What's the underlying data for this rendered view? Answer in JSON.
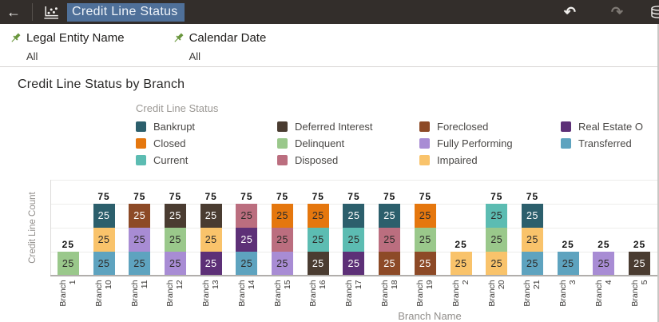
{
  "header": {
    "title": "Credit Line Status",
    "back_icon": "arrow-left",
    "undo_icon": "undo-arrow",
    "redo_icon": "redo-arrow",
    "data_icon": "database",
    "bg_color": "#332e2b",
    "selection_color": "#4f7099",
    "undo_glyph": "↶",
    "redo_glyph": "↷",
    "back_glyph": "←"
  },
  "filters": [
    {
      "label": "Legal Entity Name",
      "value": "All",
      "icon": "green-pin"
    },
    {
      "label": "Calendar Date",
      "value": "All",
      "icon": "green-pin"
    }
  ],
  "legend": {
    "title": "Credit Line Status",
    "columns": [
      [
        {
          "label": "Bankrupt",
          "color": "#2c5f6c"
        },
        {
          "label": "Closed",
          "color": "#e5770e"
        },
        {
          "label": "Current",
          "color": "#5cbcb2"
        }
      ],
      [
        {
          "label": "Deferred Interest",
          "color": "#4a3c31"
        },
        {
          "label": "Delinquent",
          "color": "#9ac88b"
        },
        {
          "label": "Disposed",
          "color": "#bb6e7f"
        }
      ],
      [
        {
          "label": "Foreclosed",
          "color": "#8d4a27"
        },
        {
          "label": "Fully Performing",
          "color": "#a88cd4"
        },
        {
          "label": "Impaired",
          "color": "#f9c36b"
        }
      ],
      [
        {
          "label": "Real Estate O",
          "color": "#5d3077"
        },
        {
          "label": "Transferred",
          "color": "#5ea3bf"
        }
      ]
    ]
  },
  "chart_data": {
    "type": "bar",
    "stacked": true,
    "title": "Credit Line Status by Branch",
    "xlabel": "Branch Name",
    "ylabel": "Credit Line Count",
    "ylim": [
      0,
      100
    ],
    "grid": true,
    "legend_position": "top",
    "statuses": {
      "Bankrupt": {
        "color": "#2c5f6c",
        "label_color": "#ffffff"
      },
      "Closed": {
        "color": "#e5770e",
        "label_color": "#2e2c2a"
      },
      "Current": {
        "color": "#5cbcb2",
        "label_color": "#2e2c2a"
      },
      "Deferred Interest": {
        "color": "#4a3c31",
        "label_color": "#ffffff"
      },
      "Delinquent": {
        "color": "#9ac88b",
        "label_color": "#2e2c2a"
      },
      "Disposed": {
        "color": "#bb6e7f",
        "label_color": "#2e2c2a"
      },
      "Foreclosed": {
        "color": "#8d4a27",
        "label_color": "#ffffff"
      },
      "Fully Performing": {
        "color": "#a88cd4",
        "label_color": "#2e2c2a"
      },
      "Impaired": {
        "color": "#f9c36b",
        "label_color": "#2e2c2a"
      },
      "Real Estate Owned": {
        "color": "#5d3077",
        "label_color": "#ffffff"
      },
      "Transferred": {
        "color": "#5ea3bf",
        "label_color": "#2e2c2a"
      }
    },
    "bars": [
      {
        "category": "Branch 1",
        "total": 25,
        "segments": [
          {
            "status": "Delinquent",
            "value": 25
          }
        ]
      },
      {
        "category": "Branch 10",
        "total": 75,
        "segments": [
          {
            "status": "Transferred",
            "value": 25
          },
          {
            "status": "Impaired",
            "value": 25
          },
          {
            "status": "Bankrupt",
            "value": 25
          }
        ]
      },
      {
        "category": "Branch 11",
        "total": 75,
        "segments": [
          {
            "status": "Transferred",
            "value": 25
          },
          {
            "status": "Fully Performing",
            "value": 25
          },
          {
            "status": "Foreclosed",
            "value": 25
          }
        ]
      },
      {
        "category": "Branch 12",
        "total": 75,
        "segments": [
          {
            "status": "Fully Performing",
            "value": 25
          },
          {
            "status": "Delinquent",
            "value": 25
          },
          {
            "status": "Deferred Interest",
            "value": 25
          }
        ]
      },
      {
        "category": "Branch 13",
        "total": 75,
        "segments": [
          {
            "status": "Real Estate Owned",
            "value": 25
          },
          {
            "status": "Impaired",
            "value": 25
          },
          {
            "status": "Deferred Interest",
            "value": 25
          }
        ]
      },
      {
        "category": "Branch 14",
        "total": 75,
        "segments": [
          {
            "status": "Transferred",
            "value": 25
          },
          {
            "status": "Real Estate Owned",
            "value": 25
          },
          {
            "status": "Disposed",
            "value": 25
          }
        ]
      },
      {
        "category": "Branch 15",
        "total": 75,
        "segments": [
          {
            "status": "Fully Performing",
            "value": 25
          },
          {
            "status": "Disposed",
            "value": 25
          },
          {
            "status": "Closed",
            "value": 25
          }
        ]
      },
      {
        "category": "Branch 16",
        "total": 75,
        "segments": [
          {
            "status": "Deferred Interest",
            "value": 25
          },
          {
            "status": "Current",
            "value": 25
          },
          {
            "status": "Closed",
            "value": 25
          }
        ]
      },
      {
        "category": "Branch 17",
        "total": 75,
        "segments": [
          {
            "status": "Real Estate Owned",
            "value": 25
          },
          {
            "status": "Current",
            "value": 25
          },
          {
            "status": "Bankrupt",
            "value": 25
          }
        ]
      },
      {
        "category": "Branch 18",
        "total": 75,
        "segments": [
          {
            "status": "Foreclosed",
            "value": 25
          },
          {
            "status": "Disposed",
            "value": 25
          },
          {
            "status": "Bankrupt",
            "value": 25
          }
        ]
      },
      {
        "category": "Branch 19",
        "total": 75,
        "segments": [
          {
            "status": "Foreclosed",
            "value": 25
          },
          {
            "status": "Delinquent",
            "value": 25
          },
          {
            "status": "Closed",
            "value": 25
          }
        ]
      },
      {
        "category": "Branch 2",
        "total": 25,
        "segments": [
          {
            "status": "Impaired",
            "value": 25
          }
        ]
      },
      {
        "category": "Branch 20",
        "total": 75,
        "segments": [
          {
            "status": "Impaired",
            "value": 25
          },
          {
            "status": "Delinquent",
            "value": 25
          },
          {
            "status": "Current",
            "value": 25
          }
        ]
      },
      {
        "category": "Branch 21",
        "total": 75,
        "segments": [
          {
            "status": "Transferred",
            "value": 25
          },
          {
            "status": "Impaired",
            "value": 25
          },
          {
            "status": "Bankrupt",
            "value": 25
          }
        ]
      },
      {
        "category": "Branch 3",
        "total": 25,
        "segments": [
          {
            "status": "Transferred",
            "value": 25
          }
        ]
      },
      {
        "category": "Branch 4",
        "total": 25,
        "segments": [
          {
            "status": "Fully Performing",
            "value": 25
          }
        ]
      },
      {
        "category": "Branch 5",
        "total": 25,
        "segments": [
          {
            "status": "Deferred Interest",
            "value": 25
          }
        ]
      }
    ]
  }
}
